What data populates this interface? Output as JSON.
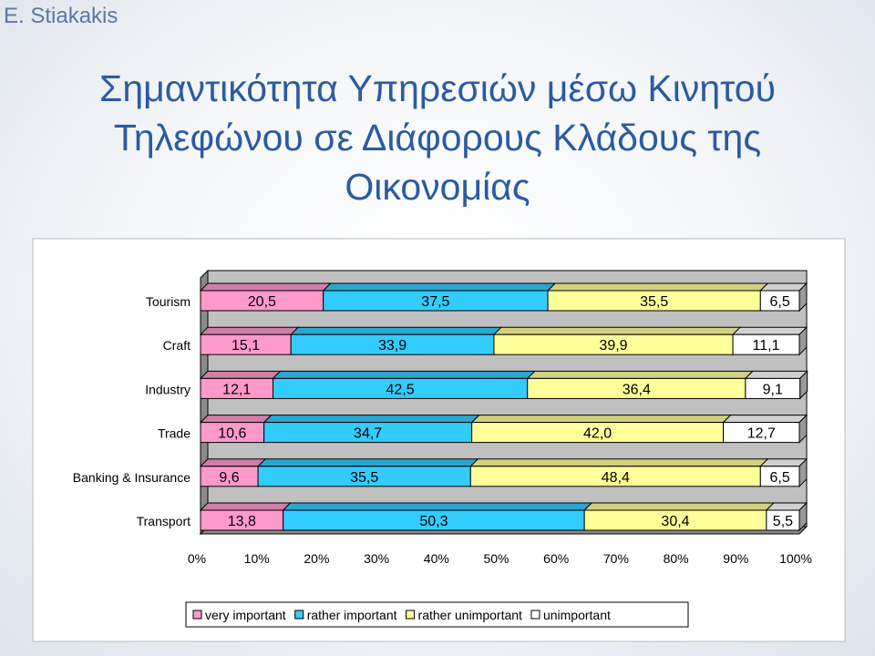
{
  "author": "E. Stiakakis",
  "title_lines": [
    "Σημαντικότητα Υπηρεσιών μέσω Κινητού",
    "Τηλεφώνου σε Διάφορους Κλάδους της",
    "Οικονομίας"
  ],
  "chart_data": {
    "type": "bar",
    "orientation": "horizontal",
    "stacked": "percent",
    "categories": [
      "Tourism",
      "Craft",
      "Industry",
      "Trade",
      "Banking & Insurance",
      "Transport"
    ],
    "series": [
      {
        "name": "very important",
        "color": "#ff99cc",
        "values": [
          20.5,
          15.1,
          12.1,
          10.6,
          9.6,
          13.8
        ],
        "labels": [
          "20,5",
          "15,1",
          "12,1",
          "10,6",
          "9,6",
          "13,8"
        ]
      },
      {
        "name": "rather important",
        "color": "#33ccff",
        "values": [
          37.5,
          33.9,
          42.5,
          34.7,
          35.5,
          50.3
        ],
        "labels": [
          "37,5",
          "33,9",
          "42,5",
          "34,7",
          "35,5",
          "50,3"
        ]
      },
      {
        "name": "rather unimportant",
        "color": "#ffff99",
        "values": [
          35.5,
          39.9,
          36.4,
          42.0,
          48.4,
          30.4
        ],
        "labels": [
          "35,5",
          "39,9",
          "36,4",
          "42,0",
          "48,4",
          "30,4"
        ]
      },
      {
        "name": "unimportant",
        "color": "#ffffff",
        "values": [
          6.5,
          11.1,
          9.1,
          12.7,
          6.5,
          5.5
        ],
        "labels": [
          "6,5",
          "11,1",
          "9,1",
          "12,7",
          "6,5",
          "5,5"
        ]
      }
    ],
    "xlim": [
      0,
      100
    ],
    "x_ticks": [
      "0%",
      "10%",
      "20%",
      "30%",
      "40%",
      "50%",
      "60%",
      "70%",
      "80%",
      "90%",
      "100%"
    ],
    "legend_position": "bottom",
    "grid": false
  }
}
